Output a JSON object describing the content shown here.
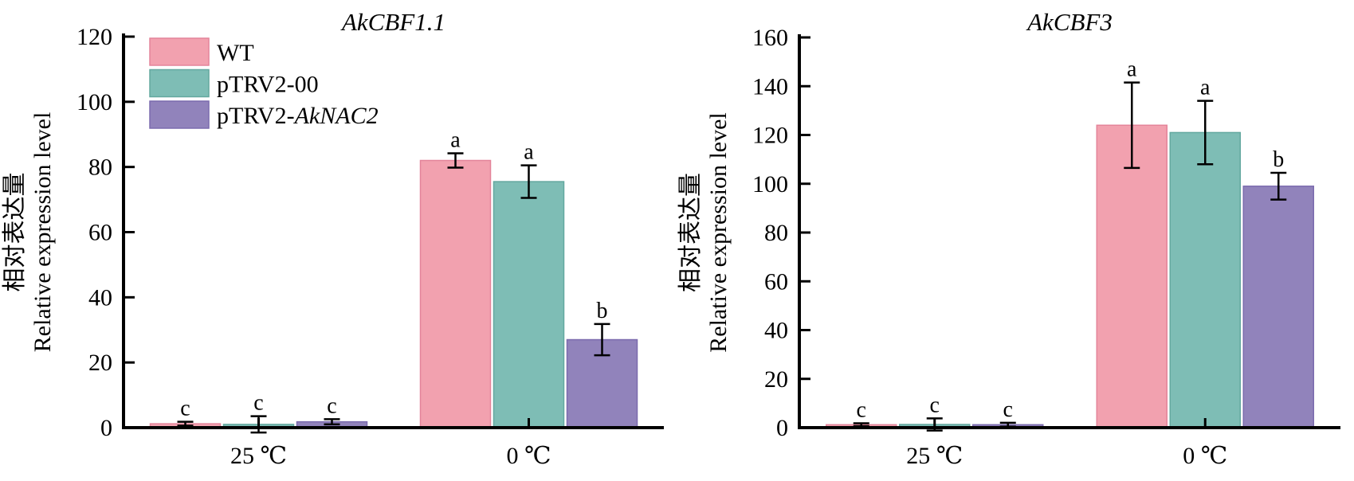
{
  "figure": {
    "background": "#ffffff",
    "text_color": "#000000",
    "axis_color": "#000000"
  },
  "chart_data": [
    {
      "type": "bar",
      "title": "AkCBF1.1",
      "title_italic": true,
      "ylabel_lines": [
        "相对表达量",
        "Relative expression level"
      ],
      "categories": [
        "25 ℃",
        "0 ℃"
      ],
      "ylim": [
        0,
        120
      ],
      "yticks": [
        0,
        20,
        40,
        60,
        80,
        100,
        120
      ],
      "legend_visible": true,
      "grid": false,
      "legend_position": "top-left",
      "series": [
        {
          "name": "WT",
          "italic_part": "",
          "color": "#F2A1AF",
          "edge_color": "#E4849A",
          "values": [
            1.2,
            82
          ],
          "errors": [
            0.6,
            2.2
          ],
          "letters": [
            "c",
            "a"
          ]
        },
        {
          "name": "pTRV2-00",
          "italic_part": "",
          "color": "#7EBDB5",
          "edge_color": "#63A89F",
          "values": [
            1.0,
            75.5
          ],
          "errors": [
            2.5,
            5.0
          ],
          "letters": [
            "c",
            "a"
          ]
        },
        {
          "name": "pTRV2-AkNAC2",
          "italic_part": "AkNAC2",
          "color": "#9183BB",
          "edge_color": "#7B6BAE",
          "values": [
            1.8,
            27
          ],
          "errors": [
            0.8,
            4.8
          ],
          "letters": [
            "c",
            "b"
          ]
        }
      ]
    },
    {
      "type": "bar",
      "title": "AkCBF3",
      "title_italic": true,
      "ylabel_lines": [
        "相对表达量",
        "Relative expression level"
      ],
      "categories": [
        "25 ℃",
        "0 ℃"
      ],
      "ylim": [
        0,
        160
      ],
      "yticks": [
        0,
        20,
        40,
        60,
        80,
        100,
        120,
        140,
        160
      ],
      "legend_visible": false,
      "grid": false,
      "legend_position": "none",
      "series": [
        {
          "name": "WT",
          "italic_part": "",
          "color": "#F2A1AF",
          "edge_color": "#E4849A",
          "values": [
            1.2,
            124
          ],
          "errors": [
            0.6,
            17.5
          ],
          "letters": [
            "c",
            "a"
          ]
        },
        {
          "name": "pTRV2-00",
          "italic_part": "",
          "color": "#7EBDB5",
          "edge_color": "#63A89F",
          "values": [
            1.3,
            121
          ],
          "errors": [
            2.5,
            13
          ],
          "letters": [
            "c",
            "a"
          ]
        },
        {
          "name": "pTRV2-AkNAC2",
          "italic_part": "AkNAC2",
          "color": "#9183BB",
          "edge_color": "#7B6BAE",
          "values": [
            1.2,
            99
          ],
          "errors": [
            0.8,
            5.5
          ],
          "letters": [
            "c",
            "b"
          ]
        }
      ]
    }
  ]
}
